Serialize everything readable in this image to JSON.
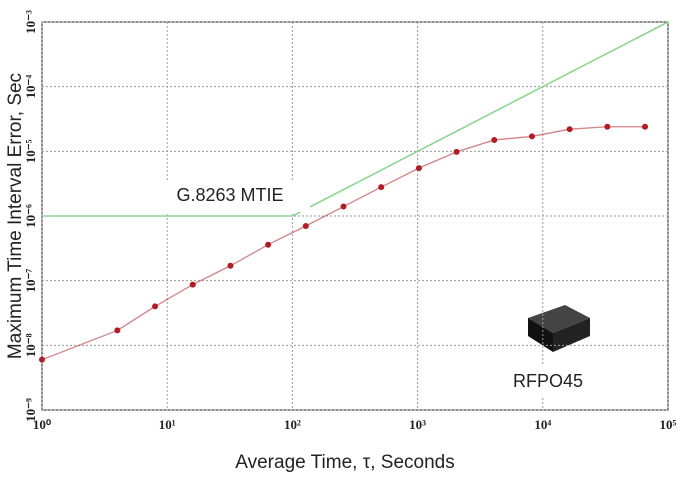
{
  "chart_data": {
    "type": "line",
    "x_label": "Average Time, τ, Seconds",
    "y_label": "Maximum Time Interval Error, Sec",
    "log_x": true,
    "log_y": true,
    "grid": true,
    "xlim": [
      1,
      100000
    ],
    "ylim": [
      1e-09,
      0.001
    ],
    "xticks": [
      {
        "value": 1,
        "label": "10⁰"
      },
      {
        "value": 10,
        "label": "10¹"
      },
      {
        "value": 100,
        "label": "10²"
      },
      {
        "value": 1000,
        "label": "10³"
      },
      {
        "value": 10000,
        "label": "10⁴"
      },
      {
        "value": 100000,
        "label": "10⁵"
      }
    ],
    "yticks": [
      {
        "value": 1e-09,
        "label": "10⁻⁹"
      },
      {
        "value": 1e-08,
        "label": "10⁻⁸"
      },
      {
        "value": 1e-07,
        "label": "10⁻⁷"
      },
      {
        "value": 1e-06,
        "label": "10⁻⁶"
      },
      {
        "value": 1e-05,
        "label": "10⁻⁵"
      },
      {
        "value": 0.0001,
        "label": "10⁻⁴"
      },
      {
        "value": 0.001,
        "label": "10⁻³"
      }
    ],
    "series": [
      {
        "name": "G.8263 MTIE",
        "color": "#8fd48f",
        "markers": false,
        "x": [
          1,
          100,
          100000
        ],
        "values": [
          1e-06,
          1e-06,
          0.001
        ]
      },
      {
        "name": "RFPO45",
        "color": "#b01e24",
        "markers": true,
        "x": [
          1,
          4,
          8,
          16,
          32,
          64,
          128,
          256,
          512,
          1024,
          2048,
          4096,
          8192,
          16384,
          32768,
          65536
        ],
        "values": [
          6e-09,
          1.7e-08,
          4e-08,
          8.7e-08,
          1.7e-07,
          3.6e-07,
          7e-07,
          1.4e-06,
          2.8e-06,
          5.5e-06,
          9.8e-06,
          1.5e-05,
          1.7e-05,
          2.2e-05,
          2.4e-05,
          2.4e-05
        ]
      }
    ]
  }
}
